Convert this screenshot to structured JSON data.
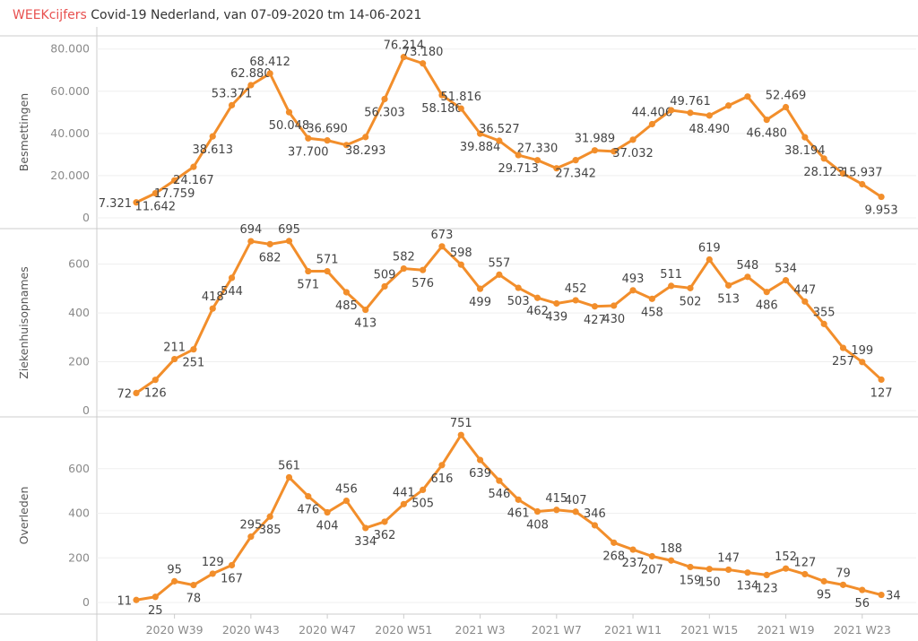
{
  "header": {
    "brand": "WEEKcijfers",
    "title": " Covid-19 Nederland, van 07-09-2020 tm 14-06-2021"
  },
  "colors": {
    "line": "#f28e2b",
    "grid": "#efefef",
    "brand": "#e8504f"
  },
  "chart_data": {
    "type": "line",
    "x": [
      "2020 W37",
      "2020 W38",
      "2020 W39",
      "2020 W40",
      "2020 W41",
      "2020 W42",
      "2020 W43",
      "2020 W44",
      "2020 W45",
      "2020 W46",
      "2020 W47",
      "2020 W48",
      "2020 W49",
      "2020 W50",
      "2020 W51",
      "2020 W52",
      "2021 W1",
      "2021 W2",
      "2021 W3",
      "2021 W4",
      "2021 W5",
      "2021 W6",
      "2021 W7",
      "2021 W8",
      "2021 W9",
      "2021 W10",
      "2021 W11",
      "2021 W12",
      "2021 W13",
      "2021 W14",
      "2021 W15",
      "2021 W16",
      "2021 W17",
      "2021 W18",
      "2021 W19",
      "2021 W20",
      "2021 W21",
      "2021 W22",
      "2021 W23",
      "2021 W24"
    ],
    "xticks": [
      "2020 W39",
      "2020 W43",
      "2020 W47",
      "2020 W51",
      "2021 W3",
      "2021 W7",
      "2021 W11",
      "2021 W15",
      "2021 W19",
      "2021 W23"
    ],
    "panels": [
      {
        "ylabel": "Besmettingen",
        "ylim": [
          0,
          82000
        ],
        "yticks": [
          0,
          20000,
          40000,
          60000,
          80000
        ],
        "ytick_labels": [
          "0",
          "20.000",
          "40.000",
          "60.000",
          "80.000"
        ],
        "values": [
          7321,
          11642,
          17759,
          24167,
          38613,
          53371,
          62880,
          68412,
          50048,
          37700,
          36690,
          34500,
          38293,
          56303,
          76214,
          73180,
          58186,
          51816,
          39884,
          36527,
          29713,
          27330,
          23500,
          27342,
          31989,
          31500,
          37032,
          44406,
          51000,
          49761,
          48490,
          53200,
          57500,
          46480,
          52469,
          38194,
          28123,
          21000,
          15937,
          9953
        ],
        "labels": [
          "7.321",
          "11.642",
          "17.759",
          "24.167",
          "38.613",
          "53.371",
          "62.880",
          "68.412",
          "50.048",
          "37.700",
          "36.690",
          null,
          "38.293",
          "56.303",
          "76.214",
          "73.180",
          "58.186",
          "51.816",
          "39.884",
          "36.527",
          "29.713",
          "27.330",
          null,
          "27.342",
          "31.989",
          null,
          "37.032",
          "44.406",
          null,
          "49.761",
          "48.490",
          null,
          null,
          "46.480",
          "52.469",
          "38.194",
          "28.123",
          null,
          "15.937",
          "9.953"
        ]
      },
      {
        "ylabel": "Ziekenhuisopnames",
        "ylim": [
          0,
          720
        ],
        "yticks": [
          0,
          200,
          400,
          600
        ],
        "ytick_labels": [
          "0",
          "200",
          "400",
          "600"
        ],
        "values": [
          72,
          126,
          211,
          251,
          418,
          544,
          694,
          682,
          695,
          571,
          571,
          485,
          413,
          509,
          582,
          576,
          673,
          598,
          499,
          557,
          503,
          462,
          439,
          452,
          427,
          430,
          493,
          458,
          511,
          502,
          619,
          513,
          548,
          486,
          534,
          447,
          355,
          257,
          199,
          127
        ],
        "labels": [
          "72",
          "126",
          "211",
          "251",
          "418",
          "544",
          "694",
          "682",
          "695",
          "571",
          "571",
          "485",
          "413",
          "509",
          "582",
          "576",
          "673",
          "598",
          "499",
          "557",
          "503",
          "462",
          "439",
          "452",
          "427",
          "430",
          "493",
          "458",
          "511",
          "502",
          "619",
          "513",
          "548",
          "486",
          "534",
          "447",
          "355",
          "257",
          "199",
          "127"
        ]
      },
      {
        "ylabel": "Overleden",
        "ylim": [
          0,
          780
        ],
        "yticks": [
          0,
          200,
          400,
          600
        ],
        "ytick_labels": [
          "0",
          "200",
          "400",
          "600"
        ],
        "values": [
          11,
          25,
          95,
          78,
          129,
          167,
          295,
          385,
          561,
          476,
          404,
          456,
          334,
          362,
          441,
          505,
          616,
          751,
          639,
          546,
          461,
          408,
          415,
          407,
          346,
          268,
          237,
          207,
          188,
          159,
          150,
          147,
          134,
          123,
          152,
          127,
          95,
          79,
          56,
          34
        ],
        "labels": [
          "11",
          "25",
          "95",
          "78",
          "129",
          "167",
          "295",
          "385",
          "561",
          "476",
          "404",
          "456",
          "334",
          "362",
          "441",
          "505",
          "616",
          "751",
          "639",
          "546",
          "461",
          "408",
          "415",
          "407",
          "346",
          "268",
          "237",
          "207",
          "188",
          "159",
          "150",
          "147",
          "134",
          "123",
          "152",
          "127",
          "95",
          "79",
          "56",
          "34"
        ]
      }
    ]
  }
}
